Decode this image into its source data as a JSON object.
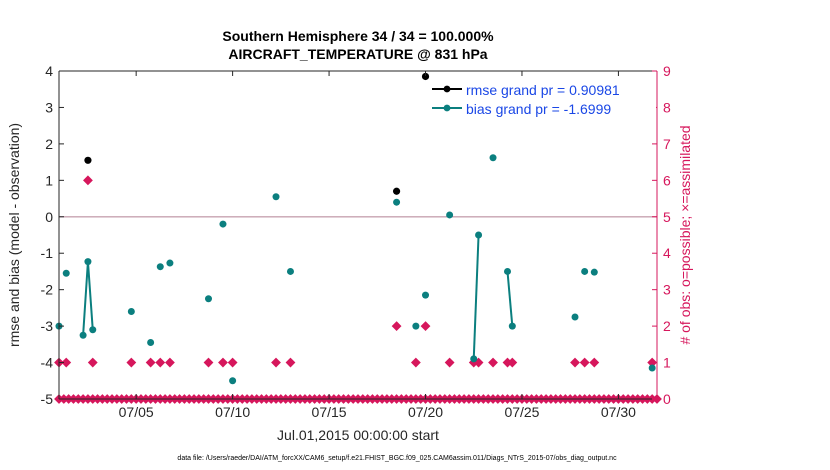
{
  "colors": {
    "rmse": "#000000",
    "bias": "#0b7f7f",
    "obs": "#d6175c",
    "zero_line": "#c7a3b0",
    "axis": "#262626"
  },
  "chart_data": {
    "type": "line",
    "title": "Southern Hemisphere 34 / 34 = 100.000%",
    "subtitle": "AIRCRAFT_TEMPERATURE @ 831 hPa",
    "xlabel": "Jul.01,2015 00:00:00 start",
    "ylabel": "rmse and bias (model - observation)",
    "y2label": "# of obs: o=possible; ×=assimilated",
    "footer": "data file: /Users/raeder/DAI/ATM_forcXX/CAM6_setup/f.e21.FHIST_BGC.f09_025.CAM6assim.011/Diags_NTrS_2015-07/obs_diag_output.nc",
    "xlim": [
      1.0,
      32.0
    ],
    "ylim": [
      -5,
      4
    ],
    "y2lim": [
      0,
      9
    ],
    "x_ticks": [
      {
        "x": 5,
        "label": "07/05"
      },
      {
        "x": 10,
        "label": "07/10"
      },
      {
        "x": 15,
        "label": "07/15"
      },
      {
        "x": 20,
        "label": "07/20"
      },
      {
        "x": 25,
        "label": "07/25"
      },
      {
        "x": 30,
        "label": "07/30"
      }
    ],
    "y_ticks": [
      -5,
      -4,
      -3,
      -2,
      -1,
      0,
      1,
      2,
      3,
      4
    ],
    "y2_ticks": [
      0,
      1,
      2,
      3,
      4,
      5,
      6,
      7,
      8,
      9
    ],
    "legend": {
      "position": "top-right",
      "entries": [
        {
          "series": "rmse",
          "label": "rmse grand pr = 0.90981"
        },
        {
          "series": "bias",
          "label": "bias grand pr = -1.6999"
        }
      ]
    },
    "series": [
      {
        "name": "rmse",
        "points": [
          [
            2.5,
            1.55
          ],
          [
            18.5,
            0.7
          ],
          [
            20.0,
            3.85
          ]
        ]
      },
      {
        "name": "bias",
        "points": [
          [
            1.0,
            -3.0
          ],
          [
            1.375,
            -1.55
          ],
          [
            2.25,
            -3.25
          ],
          [
            2.5,
            -1.23
          ],
          [
            2.75,
            -3.1
          ],
          [
            4.75,
            -2.6
          ],
          [
            5.75,
            -3.45
          ],
          [
            6.25,
            -1.37
          ],
          [
            6.75,
            -1.27
          ],
          [
            8.75,
            -2.25
          ],
          [
            9.5,
            -0.2
          ],
          [
            10.0,
            -4.5
          ],
          [
            12.25,
            0.55
          ],
          [
            13.0,
            -1.5
          ],
          [
            18.5,
            0.4
          ],
          [
            20.0,
            -2.15
          ],
          [
            19.5,
            -3.0
          ],
          [
            21.25,
            0.05
          ],
          [
            22.5,
            -3.9
          ],
          [
            22.75,
            -0.5
          ],
          [
            23.5,
            1.62
          ],
          [
            24.25,
            -1.5
          ],
          [
            24.5,
            -3.0
          ],
          [
            27.75,
            -2.75
          ],
          [
            28.25,
            -1.5
          ],
          [
            28.75,
            -1.52
          ],
          [
            31.75,
            -4.15
          ]
        ],
        "line_segments": [
          [
            [
              2.25,
              -3.25
            ],
            [
              2.5,
              -1.23
            ],
            [
              2.75,
              -3.1
            ]
          ],
          [
            [
              22.5,
              -3.9
            ],
            [
              22.75,
              -0.5
            ]
          ],
          [
            [
              24.25,
              -1.5
            ],
            [
              24.5,
              -3.0
            ]
          ]
        ]
      },
      {
        "name": "obs_assimilated",
        "x": [
          1.0,
          1.375,
          2.5,
          2.75,
          4.75,
          5.75,
          6.25,
          6.75,
          8.75,
          9.5,
          10.0,
          12.25,
          13.0,
          18.5,
          19.5,
          20.0,
          21.25,
          22.5,
          22.75,
          23.5,
          24.25,
          24.5,
          27.75,
          28.25,
          28.75,
          31.75
        ],
        "values": [
          1,
          1,
          6,
          1,
          1,
          1,
          1,
          1,
          1,
          1,
          1,
          1,
          1,
          2,
          1,
          2,
          1,
          1,
          1,
          1,
          1,
          1,
          1,
          1,
          1,
          1
        ]
      }
    ]
  }
}
